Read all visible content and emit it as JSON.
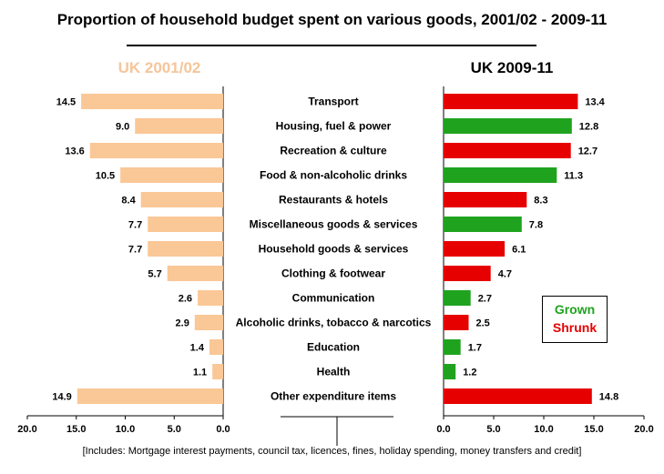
{
  "title": "Proportion of household budget spent on various goods, 2001/02 - 2009-11",
  "footnote": "[Includes: Mortgage interest payments, council tax, licences, fines, holiday spending, money transfers and credit]",
  "legend": {
    "grown": "Grown",
    "shrunk": "Shrunk"
  },
  "colors": {
    "left_bar": "#fac796",
    "grown": "#1fa31f",
    "shrunk": "#e60000",
    "left_head": "#f5c59a"
  },
  "chart_data": [
    {
      "type": "bar",
      "orientation": "horizontal",
      "direction": "reversed",
      "title": "UK 2001/02",
      "categories": [
        "Transport",
        "Housing, fuel & power",
        "Recreation & culture",
        "Food & non-alcoholic drinks",
        "Restaurants & hotels",
        "Miscellaneous goods & services",
        "Household goods & services",
        "Clothing & footwear",
        "Communication",
        "Alcoholic drinks, tobacco & narcotics",
        "Education",
        "Health",
        "Other expenditure items"
      ],
      "values": [
        14.5,
        9.0,
        13.6,
        10.5,
        8.4,
        7.7,
        7.7,
        5.7,
        2.6,
        2.9,
        1.4,
        1.1,
        14.9
      ],
      "value_labels": [
        "14.5",
        "9.0",
        "13.6",
        "10.5",
        "8.4",
        "7.7",
        "7.7",
        "5.7",
        "2.6",
        "2.9",
        "1.4",
        "1.1",
        "14.9"
      ],
      "xlim": [
        0,
        20
      ],
      "ticks": [
        "20.0",
        "15.0",
        "10.0",
        "5.0",
        "0.0"
      ],
      "tick_values": [
        20,
        15,
        10,
        5,
        0
      ]
    },
    {
      "type": "bar",
      "orientation": "horizontal",
      "title": "UK 2009-11",
      "categories": [
        "Transport",
        "Housing, fuel & power",
        "Recreation & culture",
        "Food & non-alcoholic drinks",
        "Restaurants & hotels",
        "Miscellaneous goods & services",
        "Household goods & services",
        "Clothing & footwear",
        "Communication",
        "Alcoholic drinks, tobacco & narcotics",
        "Education",
        "Health",
        "Other expenditure items"
      ],
      "values": [
        13.4,
        12.8,
        12.7,
        11.3,
        8.3,
        7.8,
        6.1,
        4.7,
        2.7,
        2.5,
        1.7,
        1.2,
        14.8
      ],
      "value_labels": [
        "13.4",
        "12.8",
        "12.7",
        "11.3",
        "8.3",
        "7.8",
        "6.1",
        "4.7",
        "2.7",
        "2.5",
        "1.7",
        "1.2",
        "14.8"
      ],
      "status": [
        "shrunk",
        "grown",
        "shrunk",
        "grown",
        "shrunk",
        "grown",
        "shrunk",
        "shrunk",
        "grown",
        "shrunk",
        "grown",
        "grown",
        "shrunk"
      ],
      "xlim": [
        0,
        20
      ],
      "ticks": [
        "0.0",
        "5.0",
        "10.0",
        "15.0",
        "20.0"
      ],
      "tick_values": [
        0,
        5,
        10,
        15,
        20
      ]
    }
  ]
}
